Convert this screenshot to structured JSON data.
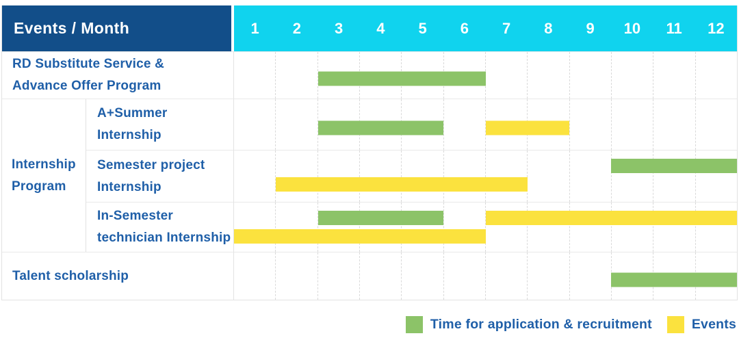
{
  "header": {
    "title": "Events / Month",
    "months": [
      "1",
      "2",
      "3",
      "4",
      "5",
      "6",
      "7",
      "8",
      "9",
      "10",
      "11",
      "12"
    ]
  },
  "colors": {
    "header_bg": "#124e89",
    "month_header_bg": "#10d3ee",
    "header_text": "#ffffff",
    "label_text": "#1f5fa8",
    "application_green": "#8cc368",
    "event_yellow": "#fbe23e",
    "row_line": "#e9e9e9",
    "column_line": "#d9d9d9"
  },
  "legend": {
    "items": [
      {
        "type": "application",
        "label": "Time for application & recruitment"
      },
      {
        "type": "event",
        "label": "Events"
      }
    ]
  },
  "chart_data": {
    "type": "gantt",
    "x_unit": "month",
    "x_ticks": [
      1,
      2,
      3,
      4,
      5,
      6,
      7,
      8,
      9,
      10,
      11,
      12
    ],
    "x_range": [
      1,
      12
    ],
    "corner_header": "Events / Month",
    "grid": "dashed-vertical-month-lines",
    "legend_position": "bottom-right",
    "bar_types": {
      "application": "Time for application & recruitment",
      "event": "Events"
    },
    "rows": [
      {
        "group": "",
        "label": "RD Substitute Service & Advance Offer Program",
        "label_lines": [
          "RD Substitute Service &",
          "Advance Offer Program"
        ],
        "bars": [
          {
            "type": "application",
            "start_month": 3,
            "end_month": 6,
            "lane": "center"
          }
        ]
      },
      {
        "group": "Internship Program",
        "label": "A+Summer Internship",
        "label_lines": [
          "A+Summer",
          "Internship"
        ],
        "bars": [
          {
            "type": "application",
            "start_month": 3,
            "end_month": 5,
            "lane": "center"
          },
          {
            "type": "event",
            "start_month": 7,
            "end_month": 8,
            "lane": "center"
          }
        ]
      },
      {
        "group": "Internship Program",
        "label": "Semester project Internship",
        "label_lines": [
          "Semester project",
          "Internship"
        ],
        "bars": [
          {
            "type": "application",
            "start_month": 10,
            "end_month": 12,
            "lane": "top"
          },
          {
            "type": "event",
            "start_month": 2,
            "end_month": 7,
            "lane": "bottom"
          }
        ]
      },
      {
        "group": "Internship Program",
        "label": "In-Semester technician Internship",
        "label_lines": [
          "In-Semester",
          "technician Internship"
        ],
        "bars": [
          {
            "type": "application",
            "start_month": 3,
            "end_month": 5,
            "lane": "top"
          },
          {
            "type": "event",
            "start_month": 7,
            "end_month": 12,
            "lane": "top"
          },
          {
            "type": "event",
            "start_month": 1,
            "end_month": 6,
            "lane": "bottom"
          }
        ]
      },
      {
        "group": "",
        "label": "Talent scholarship",
        "label_lines": [
          "Talent scholarship"
        ],
        "bars": [
          {
            "type": "application",
            "start_month": 10,
            "end_month": 12,
            "lane": "center"
          }
        ]
      }
    ],
    "group_label_lines": [
      "Internship",
      "Program"
    ]
  }
}
